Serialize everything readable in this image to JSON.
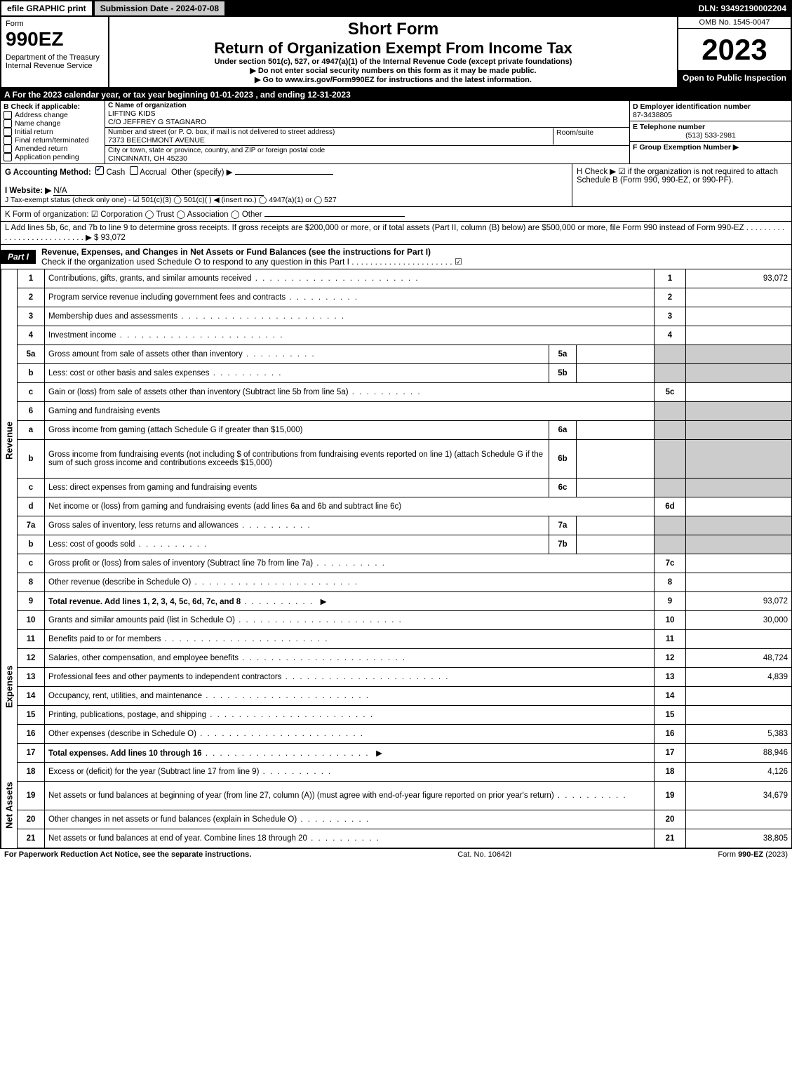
{
  "topbar": {
    "efile": "efile GRAPHIC print",
    "submission": "Submission Date - 2024-07-08",
    "dln": "DLN: 93492190002204"
  },
  "header": {
    "form_label": "Form",
    "form_number": "990EZ",
    "dept": "Department of the Treasury\nInternal Revenue Service",
    "short_form": "Short Form",
    "return_title": "Return of Organization Exempt From Income Tax",
    "under_section": "Under section 501(c), 527, or 4947(a)(1) of the Internal Revenue Code (except private foundations)",
    "directive1": "▶ Do not enter social security numbers on this form as it may be made public.",
    "directive2": "▶ Go to www.irs.gov/Form990EZ for instructions and the latest information.",
    "omb": "OMB No. 1545-0047",
    "year": "2023",
    "open_to": "Open to Public Inspection"
  },
  "row_a": "A  For the 2023 calendar year, or tax year beginning 01-01-2023 , and ending 12-31-2023",
  "b": {
    "label": "B  Check if applicable:",
    "items": {
      "address_change": "Address change",
      "name_change": "Name change",
      "initial_return": "Initial return",
      "final_return": "Final return/terminated",
      "amended_return": "Amended return",
      "application_pending": "Application pending"
    }
  },
  "c": {
    "name_label": "C Name of organization",
    "name1": "LIFTING KIDS",
    "name2": "C/O JEFFREY G STAGNARO",
    "street_label": "Number and street (or P. O. box, if mail is not delivered to street address)",
    "street": "7373 BEECHMONT AVENUE",
    "room_label": "Room/suite",
    "city_label": "City or town, state or province, country, and ZIP or foreign postal code",
    "city": "CINCINNATI, OH  45230"
  },
  "d": {
    "label": "D Employer identification number",
    "value": "87-3438805"
  },
  "e": {
    "label": "E Telephone number",
    "value": "(513) 533-2981"
  },
  "f": {
    "label": "F Group Exemption Number  ▶"
  },
  "g": {
    "label": "G Accounting Method:",
    "cash": "Cash",
    "accrual": "Accrual",
    "other": "Other (specify) ▶"
  },
  "h": {
    "text": "H  Check ▶ ☑ if the organization is not required to attach Schedule B (Form 990, 990-EZ, or 990-PF)."
  },
  "i": {
    "label": "I Website: ▶",
    "value": "N/A"
  },
  "j": {
    "text": "J Tax-exempt status (check only one) - ☑ 501(c)(3)  ◯ 501(c)(  ) ◀ (insert no.)  ◯ 4947(a)(1) or  ◯ 527"
  },
  "k": {
    "text": "K Form of organization:  ☑ Corporation  ◯ Trust  ◯ Association  ◯ Other"
  },
  "l": {
    "text": "L Add lines 5b, 6c, and 7b to line 9 to determine gross receipts. If gross receipts are $200,000 or more, or if total assets (Part II, column (B) below) are $500,000 or more, file Form 990 instead of Form 990-EZ . . . . . . . . . . . . . . . . . . . . . . . . . . . ▶ $ 93,072"
  },
  "part1": {
    "tag": "Part I",
    "title": "Revenue, Expenses, and Changes in Net Assets or Fund Balances (see the instructions for Part I)",
    "subtitle": "Check if the organization used Schedule O to respond to any question in this Part I . . . . . . . . . . . . . . . . . . . . . . ☑"
  },
  "revenue_label": "Revenue",
  "expenses_label": "Expenses",
  "netassets_label": "Net Assets",
  "lines": {
    "1": {
      "no": "1",
      "desc": "Contributions, gifts, grants, and similar amounts received",
      "rn": "1",
      "val": "93,072"
    },
    "2": {
      "no": "2",
      "desc": "Program service revenue including government fees and contracts",
      "rn": "2",
      "val": ""
    },
    "3": {
      "no": "3",
      "desc": "Membership dues and assessments",
      "rn": "3",
      "val": ""
    },
    "4": {
      "no": "4",
      "desc": "Investment income",
      "rn": "4",
      "val": ""
    },
    "5a": {
      "no": "5a",
      "desc": "Gross amount from sale of assets other than inventory",
      "mid": "5a"
    },
    "5b": {
      "no": "b",
      "desc": "Less: cost or other basis and sales expenses",
      "mid": "5b"
    },
    "5c": {
      "no": "c",
      "desc": "Gain or (loss) from sale of assets other than inventory (Subtract line 5b from line 5a)",
      "rn": "5c",
      "val": ""
    },
    "6": {
      "no": "6",
      "desc": "Gaming and fundraising events"
    },
    "6a": {
      "no": "a",
      "desc": "Gross income from gaming (attach Schedule G if greater than $15,000)",
      "mid": "6a"
    },
    "6b": {
      "no": "b",
      "desc": "Gross income from fundraising events (not including $                   of contributions from fundraising events reported on line 1) (attach Schedule G if the sum of such gross income and contributions exceeds $15,000)",
      "mid": "6b"
    },
    "6c": {
      "no": "c",
      "desc": "Less: direct expenses from gaming and fundraising events",
      "mid": "6c"
    },
    "6d": {
      "no": "d",
      "desc": "Net income or (loss) from gaming and fundraising events (add lines 6a and 6b and subtract line 6c)",
      "rn": "6d",
      "val": ""
    },
    "7a": {
      "no": "7a",
      "desc": "Gross sales of inventory, less returns and allowances",
      "mid": "7a"
    },
    "7b": {
      "no": "b",
      "desc": "Less: cost of goods sold",
      "mid": "7b"
    },
    "7c": {
      "no": "c",
      "desc": "Gross profit or (loss) from sales of inventory (Subtract line 7b from line 7a)",
      "rn": "7c",
      "val": ""
    },
    "8": {
      "no": "8",
      "desc": "Other revenue (describe in Schedule O)",
      "rn": "8",
      "val": ""
    },
    "9": {
      "no": "9",
      "desc": "Total revenue. Add lines 1, 2, 3, 4, 5c, 6d, 7c, and 8",
      "rn": "9",
      "val": "93,072"
    },
    "10": {
      "no": "10",
      "desc": "Grants and similar amounts paid (list in Schedule O)",
      "rn": "10",
      "val": "30,000"
    },
    "11": {
      "no": "11",
      "desc": "Benefits paid to or for members",
      "rn": "11",
      "val": ""
    },
    "12": {
      "no": "12",
      "desc": "Salaries, other compensation, and employee benefits",
      "rn": "12",
      "val": "48,724"
    },
    "13": {
      "no": "13",
      "desc": "Professional fees and other payments to independent contractors",
      "rn": "13",
      "val": "4,839"
    },
    "14": {
      "no": "14",
      "desc": "Occupancy, rent, utilities, and maintenance",
      "rn": "14",
      "val": ""
    },
    "15": {
      "no": "15",
      "desc": "Printing, publications, postage, and shipping",
      "rn": "15",
      "val": ""
    },
    "16": {
      "no": "16",
      "desc": "Other expenses (describe in Schedule O)",
      "rn": "16",
      "val": "5,383"
    },
    "17": {
      "no": "17",
      "desc": "Total expenses. Add lines 10 through 16",
      "rn": "17",
      "val": "88,946"
    },
    "18": {
      "no": "18",
      "desc": "Excess or (deficit) for the year (Subtract line 17 from line 9)",
      "rn": "18",
      "val": "4,126"
    },
    "19": {
      "no": "19",
      "desc": "Net assets or fund balances at beginning of year (from line 27, column (A)) (must agree with end-of-year figure reported on prior year's return)",
      "rn": "19",
      "val": "34,679"
    },
    "20": {
      "no": "20",
      "desc": "Other changes in net assets or fund balances (explain in Schedule O)",
      "rn": "20",
      "val": ""
    },
    "21": {
      "no": "21",
      "desc": "Net assets or fund balances at end of year. Combine lines 18 through 20",
      "rn": "21",
      "val": "38,805"
    }
  },
  "footer": {
    "left": "For Paperwork Reduction Act Notice, see the separate instructions.",
    "center": "Cat. No. 10642I",
    "right": "Form 990-EZ (2023)"
  },
  "colors": {
    "black": "#000000",
    "grey": "#cccccc",
    "link": "#3b5998"
  }
}
